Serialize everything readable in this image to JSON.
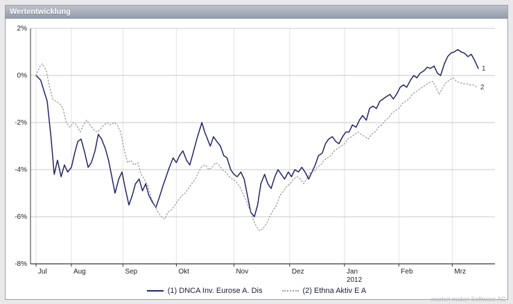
{
  "window": {
    "title": "Wertentwicklung"
  },
  "watermark": "market maker Software AG",
  "legend": {
    "series1_label": "(1) DNCA Inv. Eurose A. Dis",
    "series2_label": "(2) Ethna Aktiv E A"
  },
  "colors": {
    "series1": "#1f2466",
    "series2": "#9b9b9b",
    "grid_h": "#c8c8c8",
    "grid_v": "#e2e2e6",
    "axis": "#333344",
    "tick_text": "#222222"
  },
  "chart_data": {
    "type": "line",
    "title": "Wertentwicklung",
    "xlabel": "",
    "ylabel": "%",
    "ylim": [
      -8,
      2
    ],
    "grid": true,
    "legend_position": "bottom",
    "y_ticks": [
      {
        "v": 2,
        "label": "2%"
      },
      {
        "v": 0,
        "label": "0%"
      },
      {
        "v": -2,
        "label": "-2%"
      },
      {
        "v": -4,
        "label": "-4%"
      },
      {
        "v": -6,
        "label": "-6%"
      },
      {
        "v": -8,
        "label": "-8%"
      }
    ],
    "x_ticks": [
      {
        "pos": 1.2,
        "label": "Jul"
      },
      {
        "pos": 8.8,
        "label": "Aug"
      },
      {
        "pos": 19.9,
        "label": "Sep"
      },
      {
        "pos": 31.4,
        "label": "Okt"
      },
      {
        "pos": 43.8,
        "label": "Nov"
      },
      {
        "pos": 55.8,
        "label": "Dez"
      },
      {
        "pos": 67.6,
        "label": "Jan",
        "sublabel": "2012"
      },
      {
        "pos": 79.3,
        "label": "Feb"
      },
      {
        "pos": 90.8,
        "label": "Mrz"
      }
    ],
    "series": [
      {
        "name": "(1) DNCA Inv. Eurose A. Dis",
        "style": "solid",
        "color": "#1f2466",
        "end_label": "1",
        "points": [
          [
            1.2,
            0
          ],
          [
            2.2,
            -0.2
          ],
          [
            3.6,
            -1.1
          ],
          [
            4.4,
            -2.6
          ],
          [
            5.1,
            -4.2
          ],
          [
            5.8,
            -3.6
          ],
          [
            6.6,
            -4.3
          ],
          [
            7.3,
            -3.8
          ],
          [
            8,
            -4.1
          ],
          [
            8.8,
            -3.9
          ],
          [
            9.5,
            -3.3
          ],
          [
            10.2,
            -2.8
          ],
          [
            10.9,
            -2.7
          ],
          [
            11.7,
            -3.3
          ],
          [
            12.4,
            -3.9
          ],
          [
            13.1,
            -3.7
          ],
          [
            13.9,
            -3.2
          ],
          [
            14.6,
            -2.5
          ],
          [
            15.3,
            -2.7
          ],
          [
            16.1,
            -3.1
          ],
          [
            16.8,
            -3.6
          ],
          [
            17.5,
            -4.3
          ],
          [
            18.2,
            -5
          ],
          [
            19,
            -4.4
          ],
          [
            19.7,
            -4.1
          ],
          [
            20.4,
            -4.8
          ],
          [
            21.2,
            -5.5
          ],
          [
            21.9,
            -5.1
          ],
          [
            22.6,
            -4.6
          ],
          [
            23.4,
            -4.4
          ],
          [
            24.1,
            -4.9
          ],
          [
            24.8,
            -4.6
          ],
          [
            25.5,
            -5.1
          ],
          [
            26.3,
            -5.4
          ],
          [
            27,
            -5.6
          ],
          [
            27.7,
            -5.2
          ],
          [
            28.5,
            -4.7
          ],
          [
            29.2,
            -4.3
          ],
          [
            29.9,
            -3.9
          ],
          [
            30.7,
            -3.5
          ],
          [
            31.4,
            -3.7
          ],
          [
            32.1,
            -3.4
          ],
          [
            32.8,
            -3.2
          ],
          [
            33.6,
            -3.6
          ],
          [
            34.3,
            -3.8
          ],
          [
            35,
            -3.3
          ],
          [
            35.8,
            -2.7
          ],
          [
            36.9,
            -2
          ],
          [
            37.5,
            -2.4
          ],
          [
            38.7,
            -3
          ],
          [
            39.4,
            -2.6
          ],
          [
            40.1,
            -2.8
          ],
          [
            40.9,
            -3
          ],
          [
            41.6,
            -3.4
          ],
          [
            42.3,
            -3.5
          ],
          [
            43.1,
            -4
          ],
          [
            43.8,
            -4.2
          ],
          [
            44.5,
            -4.3
          ],
          [
            45.3,
            -4.1
          ],
          [
            46,
            -4.4
          ],
          [
            46.7,
            -5.1
          ],
          [
            47.4,
            -5.8
          ],
          [
            48.2,
            -6
          ],
          [
            48.9,
            -5.5
          ],
          [
            49.6,
            -4.6
          ],
          [
            50.4,
            -4.2
          ],
          [
            51.1,
            -4.6
          ],
          [
            51.8,
            -4.8
          ],
          [
            52.6,
            -4.3
          ],
          [
            53.3,
            -4
          ],
          [
            54,
            -4.2
          ],
          [
            54.7,
            -4.4
          ],
          [
            55.5,
            -4.1
          ],
          [
            56.2,
            -4.3
          ],
          [
            56.9,
            -4
          ],
          [
            57.7,
            -4.1
          ],
          [
            58.4,
            -3.9
          ],
          [
            59.1,
            -4.1
          ],
          [
            59.9,
            -4.4
          ],
          [
            60.6,
            -4.1
          ],
          [
            61.3,
            -3.8
          ],
          [
            62,
            -3.4
          ],
          [
            62.8,
            -3.3
          ],
          [
            63.5,
            -2.9
          ],
          [
            64.2,
            -2.7
          ],
          [
            65,
            -2.6
          ],
          [
            65.7,
            -2.8
          ],
          [
            66.4,
            -2.9
          ],
          [
            67.2,
            -2.6
          ],
          [
            67.9,
            -2.4
          ],
          [
            68.6,
            -2.4
          ],
          [
            69.3,
            -2.1
          ],
          [
            70.1,
            -2.2
          ],
          [
            70.8,
            -1.9
          ],
          [
            71.5,
            -1.7
          ],
          [
            72.3,
            -1.9
          ],
          [
            73,
            -1.4
          ],
          [
            73.7,
            -1.3
          ],
          [
            74.5,
            -1.4
          ],
          [
            75.2,
            -1.1
          ],
          [
            75.9,
            -1
          ],
          [
            76.6,
            -0.9
          ],
          [
            77.4,
            -0.8
          ],
          [
            78.1,
            -1
          ],
          [
            78.8,
            -0.8
          ],
          [
            79.6,
            -0.5
          ],
          [
            80.3,
            -0.4
          ],
          [
            81,
            -0.5
          ],
          [
            81.8,
            -0.2
          ],
          [
            82.5,
            0
          ],
          [
            83.2,
            -0.1
          ],
          [
            83.9,
            0.1
          ],
          [
            84.7,
            0.2
          ],
          [
            85.4,
            0.35
          ],
          [
            86.1,
            0.3
          ],
          [
            86.9,
            0.4
          ],
          [
            87.6,
            0.1
          ],
          [
            88.3,
            0
          ],
          [
            89.1,
            0.5
          ],
          [
            89.8,
            0.8
          ],
          [
            90.5,
            0.95
          ],
          [
            91.2,
            1
          ],
          [
            92,
            1.1
          ],
          [
            92.7,
            1
          ],
          [
            93.4,
            0.95
          ],
          [
            94.2,
            0.8
          ],
          [
            94.9,
            0.9
          ],
          [
            95.6,
            0.65
          ],
          [
            96.4,
            0.3
          ]
        ]
      },
      {
        "name": "(2) Ethna Aktiv E A",
        "style": "dotted",
        "color": "#9b9b9b",
        "end_label": "2",
        "points": [
          [
            1.2,
            0
          ],
          [
            1.9,
            0.35
          ],
          [
            2.6,
            0.5
          ],
          [
            3.4,
            0.2
          ],
          [
            4.1,
            -0.5
          ],
          [
            4.8,
            -1
          ],
          [
            5.5,
            -1.1
          ],
          [
            6.3,
            -1.2
          ],
          [
            7,
            -1.4
          ],
          [
            7.7,
            -2
          ],
          [
            8.5,
            -2.2
          ],
          [
            9.2,
            -2
          ],
          [
            9.9,
            -2.1
          ],
          [
            10.7,
            -2.4
          ],
          [
            11.4,
            -2.1
          ],
          [
            12.1,
            -1.9
          ],
          [
            12.8,
            -2.1
          ],
          [
            13.6,
            -2.3
          ],
          [
            14.3,
            -2.4
          ],
          [
            15,
            -2.3
          ],
          [
            15.8,
            -2.1
          ],
          [
            16.5,
            -2
          ],
          [
            17.2,
            -2.1
          ],
          [
            18,
            -2
          ],
          [
            18.7,
            -2.1
          ],
          [
            19.4,
            -2.4
          ],
          [
            20.1,
            -3.1
          ],
          [
            20.9,
            -3.7
          ],
          [
            21.6,
            -3.6
          ],
          [
            22.3,
            -3.8
          ],
          [
            23.1,
            -3.7
          ],
          [
            23.8,
            -4.2
          ],
          [
            24.5,
            -4.4
          ],
          [
            25.3,
            -4.7
          ],
          [
            26,
            -5.2
          ],
          [
            26.7,
            -5.5
          ],
          [
            27.4,
            -5.8
          ],
          [
            28.2,
            -6
          ],
          [
            28.9,
            -6.1
          ],
          [
            29.6,
            -5.8
          ],
          [
            30.4,
            -5.7
          ],
          [
            31.1,
            -5.5
          ],
          [
            31.8,
            -5.3
          ],
          [
            32.6,
            -5.1
          ],
          [
            33.3,
            -5
          ],
          [
            34,
            -4.8
          ],
          [
            34.7,
            -4.6
          ],
          [
            35.5,
            -4.4
          ],
          [
            36.2,
            -4.1
          ],
          [
            36.9,
            -3.85
          ],
          [
            37.7,
            -3.8
          ],
          [
            38.4,
            -4
          ],
          [
            39.1,
            -3.9
          ],
          [
            39.9,
            -3.7
          ],
          [
            40.6,
            -3.8
          ],
          [
            41.3,
            -4
          ],
          [
            42,
            -4.1
          ],
          [
            42.8,
            -4.3
          ],
          [
            43.5,
            -4.4
          ],
          [
            44.2,
            -4.5
          ],
          [
            45,
            -4.7
          ],
          [
            45.7,
            -5
          ],
          [
            46.4,
            -5.3
          ],
          [
            47.2,
            -5.7
          ],
          [
            47.9,
            -6.1
          ],
          [
            48.6,
            -6.4
          ],
          [
            49.3,
            -6.6
          ],
          [
            50.1,
            -6.5
          ],
          [
            50.8,
            -6.3
          ],
          [
            51.5,
            -6
          ],
          [
            52.3,
            -5.7
          ],
          [
            53,
            -5.5
          ],
          [
            53.7,
            -5.1
          ],
          [
            54.5,
            -4.9
          ],
          [
            55.2,
            -4.7
          ],
          [
            55.9,
            -4.6
          ],
          [
            56.6,
            -4.4
          ],
          [
            57.4,
            -4.3
          ],
          [
            58.1,
            -4.4
          ],
          [
            58.8,
            -4.6
          ],
          [
            59.6,
            -4.35
          ],
          [
            60.3,
            -4.1
          ],
          [
            61,
            -4.1
          ],
          [
            61.7,
            -3.9
          ],
          [
            62.5,
            -3.8
          ],
          [
            63.2,
            -3.6
          ],
          [
            63.9,
            -3.5
          ],
          [
            64.7,
            -3.4
          ],
          [
            65.4,
            -3.2
          ],
          [
            66.1,
            -3.1
          ],
          [
            66.9,
            -3
          ],
          [
            67.6,
            -2.9
          ],
          [
            68.3,
            -2.7
          ],
          [
            69.1,
            -2.6
          ],
          [
            69.8,
            -2.5
          ],
          [
            70.5,
            -2.4
          ],
          [
            71.2,
            -2.5
          ],
          [
            72,
            -2.6
          ],
          [
            72.7,
            -2.7
          ],
          [
            73.4,
            -2.5
          ],
          [
            74.2,
            -2.4
          ],
          [
            74.9,
            -2.2
          ],
          [
            75.6,
            -2.1
          ],
          [
            76.4,
            -1.9
          ],
          [
            77.1,
            -1.8
          ],
          [
            77.8,
            -1.6
          ],
          [
            78.5,
            -1.5
          ],
          [
            79.3,
            -1.4
          ],
          [
            80,
            -1.2
          ],
          [
            80.7,
            -1.1
          ],
          [
            81.5,
            -1
          ],
          [
            82.2,
            -0.8
          ],
          [
            82.9,
            -0.7
          ],
          [
            83.6,
            -0.6
          ],
          [
            84.4,
            -0.5
          ],
          [
            85.1,
            -0.4
          ],
          [
            85.8,
            -0.3
          ],
          [
            86.6,
            -0.25
          ],
          [
            87.3,
            -0.5
          ],
          [
            88,
            -0.8
          ],
          [
            88.8,
            -0.5
          ],
          [
            89.5,
            -0.3
          ],
          [
            90.2,
            -0.2
          ],
          [
            91,
            -0.1
          ],
          [
            91.7,
            -0.25
          ],
          [
            92.4,
            -0.3
          ],
          [
            93.1,
            -0.35
          ],
          [
            93.9,
            -0.35
          ],
          [
            94.6,
            -0.4
          ],
          [
            95.3,
            -0.4
          ],
          [
            96.1,
            -0.5
          ]
        ]
      }
    ]
  }
}
